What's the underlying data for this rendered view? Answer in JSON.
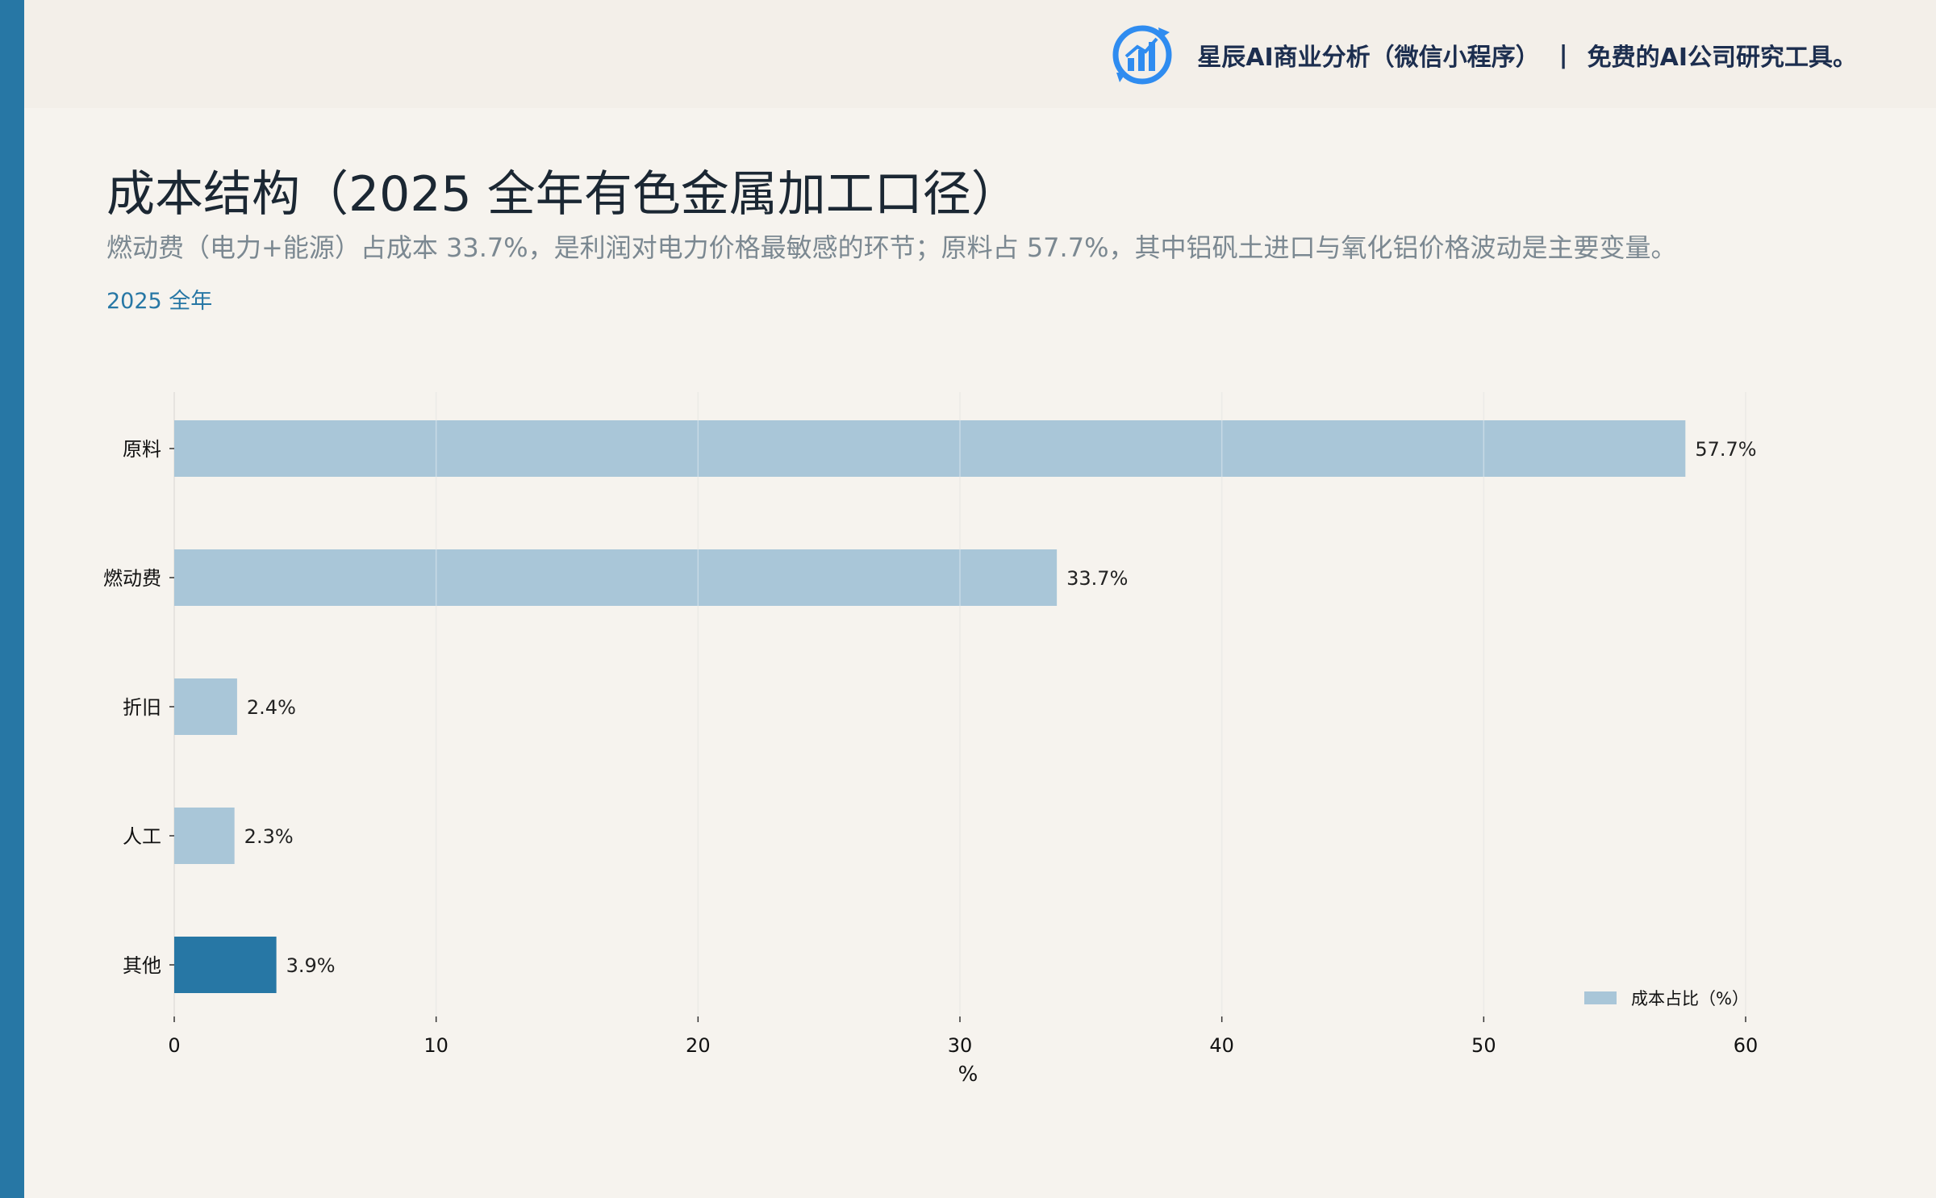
{
  "header": {
    "brand_name": "星辰AI商业分析（微信小程序）",
    "separator": "|",
    "tagline": "免费的AI公司研究工具。",
    "logo_icon": "bar-chart-refresh-icon"
  },
  "title": "成本结构（2025 全年有色金属加工口径）",
  "subtitle": "燃动费（电力+能源）占成本 33.7%，是利润对电力价格最敏感的环节；原料占 57.7%，其中铝矾土进口与氧化铝价格波动是主要变量。",
  "period_tag": "2025 全年",
  "colors": {
    "accent": "#2777a5",
    "bar": "#a9c6d8",
    "bar_highlight": "#2777a5",
    "background": "#f6f3ee"
  },
  "chart_data": {
    "type": "bar",
    "orientation": "horizontal",
    "categories": [
      "原料",
      "燃动费",
      "折旧",
      "人工",
      "其他"
    ],
    "series": [
      {
        "name": "成本占比（%）",
        "values": [
          57.7,
          33.7,
          2.4,
          2.3,
          3.9
        ],
        "labels": [
          "57.7%",
          "33.7%",
          "2.4%",
          "2.3%",
          "3.9%"
        ]
      }
    ],
    "highlight": "其他",
    "xlabel": "%",
    "xlim": [
      0,
      60
    ],
    "xticks": [
      0,
      10,
      20,
      30,
      40,
      50,
      60
    ],
    "grid": true,
    "legend": "bottom-right"
  }
}
